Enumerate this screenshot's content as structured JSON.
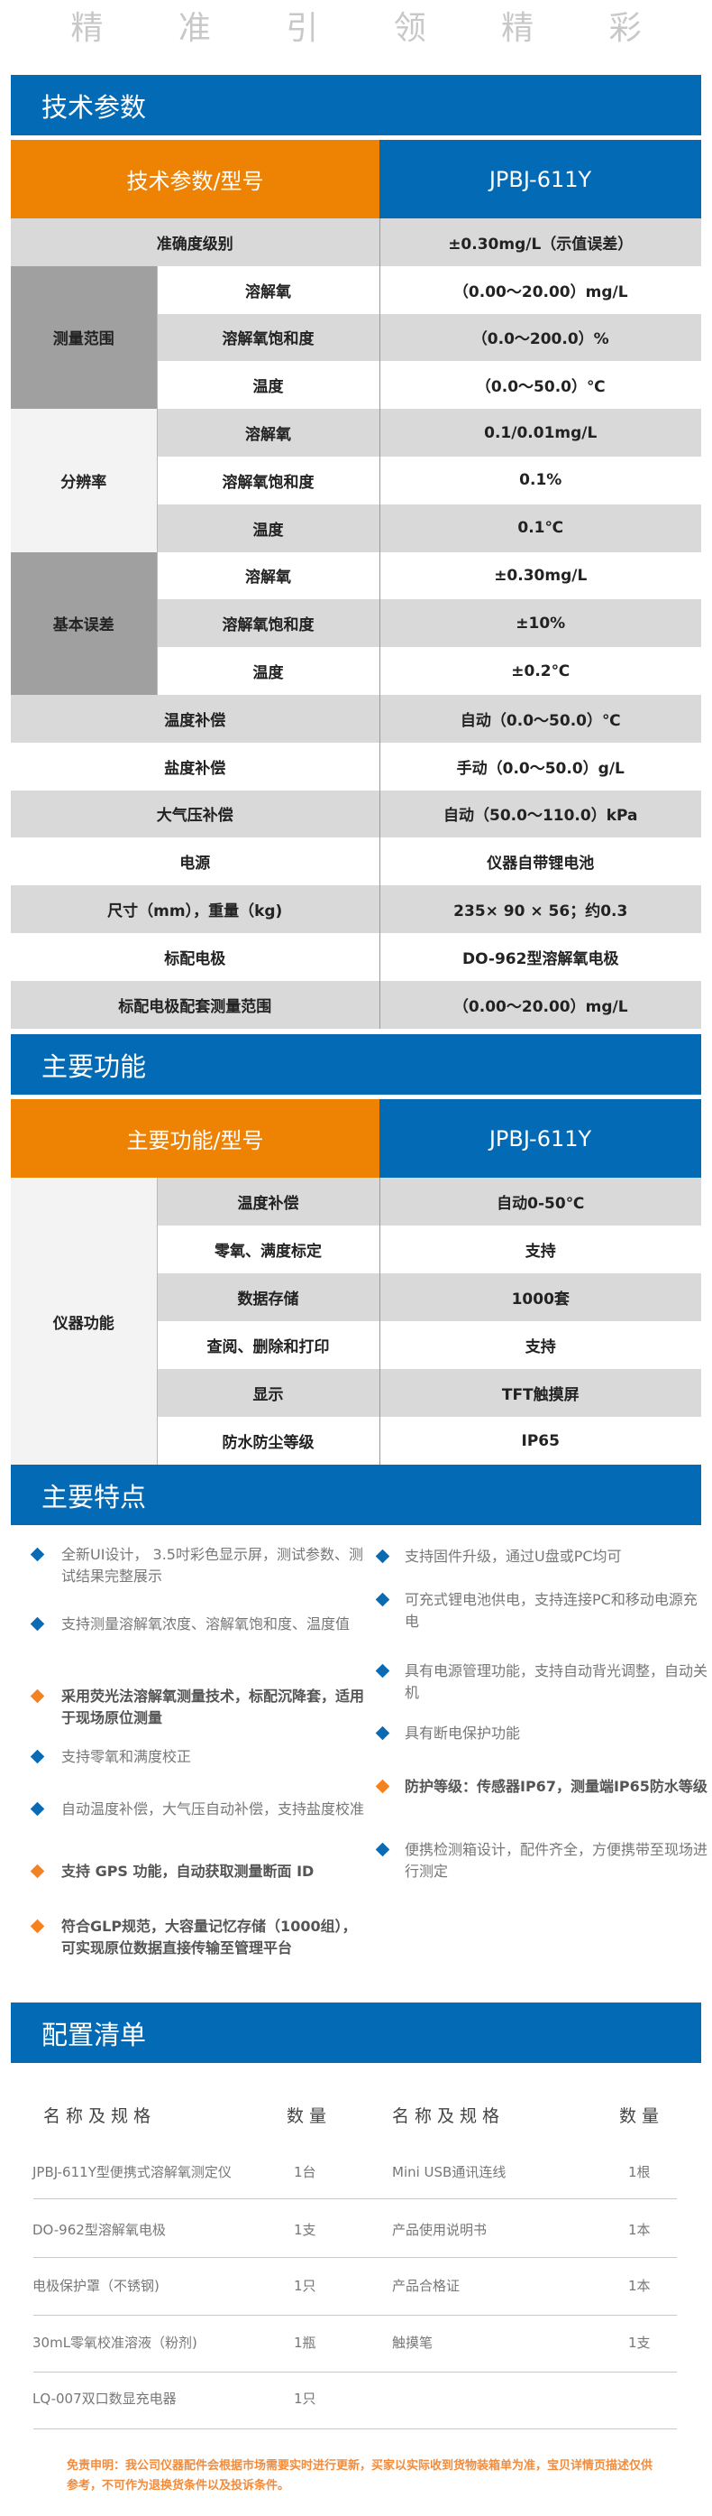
{
  "slogan": "精 准 引 领 精 彩",
  "colors": {
    "brand_blue": "#036bb5",
    "accent_orange": "#ee8203",
    "row_gray": "#d9d9d9",
    "disclaimer": "#f28c3c"
  },
  "tech": {
    "title": "技术参数",
    "header_left": "技术参数/型号",
    "header_right": "JPBJ-611Y",
    "rows": [
      {
        "label": "准确度级别",
        "value": "±0.30mg/L（示值误差）"
      },
      {
        "group": "测量范围",
        "items": [
          {
            "label": "溶解氧",
            "value": "（0.00～20.00）mg/L"
          },
          {
            "label": "溶解氧饱和度",
            "value": "（0.0～200.0）%"
          },
          {
            "label": "温度",
            "value": "（0.0～50.0）℃"
          }
        ]
      },
      {
        "group": "分辨率",
        "items": [
          {
            "label": "溶解氧",
            "value": "0.1/0.01mg/L"
          },
          {
            "label": "溶解氧饱和度",
            "value": "0.1%"
          },
          {
            "label": "温度",
            "value": "0.1℃"
          }
        ]
      },
      {
        "group": "基本误差",
        "items": [
          {
            "label": "溶解氧",
            "value": "±0.30mg/L"
          },
          {
            "label": "溶解氧饱和度",
            "value": "±10%"
          },
          {
            "label": "温度",
            "value": "±0.2℃"
          }
        ]
      },
      {
        "label": "温度补偿",
        "value": "自动（0.0～50.0）℃"
      },
      {
        "label": "盐度补偿",
        "value": "手动（0.0～50.0）g/L"
      },
      {
        "label": "大气压补偿",
        "value": "自动（50.0～110.0）kPa"
      },
      {
        "label": "电源",
        "value": "仪器自带锂电池"
      },
      {
        "label": "尺寸（mm），重量（kg)",
        "value": "235× 90 × 56；约0.3"
      },
      {
        "label": "标配电极",
        "value": "DO-962型溶解氧电极"
      },
      {
        "label": "标配电极配套测量范围",
        "value": "（0.00～20.00）mg/L"
      }
    ]
  },
  "functions": {
    "title": "主要功能",
    "header_left": "主要功能/型号",
    "header_right": "JPBJ-611Y",
    "rows": [
      {
        "group": "仪器功能",
        "items": [
          {
            "label": "温度补偿",
            "value": "自动0-50℃"
          },
          {
            "label": "零氧、满度标定",
            "value": "支持"
          },
          {
            "label": "数据存储",
            "value": "1000套"
          },
          {
            "label": "查阅、删除和打印",
            "value": "支持"
          },
          {
            "label": "显示",
            "value": "TFT触摸屏"
          },
          {
            "label": "防水防尘等级",
            "value": "IP65"
          }
        ]
      }
    ]
  },
  "features": {
    "title": "主要特点",
    "left": [
      {
        "text": "全新UI设计， 3.5吋彩色显示屏，测试参数、测试结果完整展示",
        "bullet": "blue"
      },
      {
        "text": "支持测量溶解氧浓度、溶解氧饱和度、温度值",
        "bullet": "blue"
      },
      {
        "text": "采用荧光法溶解氧测量技术，标配沉降套，适用于现场原位测量",
        "bullet": "orange"
      },
      {
        "text": "支持零氧和满度校正",
        "bullet": "blue"
      },
      {
        "text": "自动温度补偿，大气压自动补偿，支持盐度校准",
        "bullet": "blue"
      },
      {
        "text": "支持 GPS 功能，自动获取测量断面 ID",
        "bullet": "orange"
      },
      {
        "text": "符合GLP规范，大容量记忆存储（1000组），可实现原位数据直接传输至管理平台",
        "bullet": "orange"
      }
    ],
    "right": [
      {
        "text": "支持固件升级，通过U盘或PC均可",
        "bullet": "blue"
      },
      {
        "text": "可充式锂电池供电，支持连接PC和移动电源充电",
        "bullet": "blue"
      },
      {
        "text": "具有电源管理功能，支持自动背光调整，自动关机",
        "bullet": "blue"
      },
      {
        "text": "具有断电保护功能",
        "bullet": "blue"
      },
      {
        "text": "防护等级：传感器IP67，测量端IP65防水等级",
        "bullet": "orange"
      },
      {
        "text": "便携检测箱设计，配件齐全，方便携带至现场进行测定",
        "bullet": "blue"
      }
    ]
  },
  "config": {
    "title": "配置清单",
    "headers": [
      "名称及规格",
      "数量",
      "名称及规格",
      "数量"
    ],
    "rows": [
      [
        "JPBJ-611Y型便携式溶解氧测定仪",
        "1台",
        "Mini USB通讯连线",
        "1根"
      ],
      [
        "DO-962型溶解氧电极",
        "1支",
        "产品使用说明书",
        "1本"
      ],
      [
        "电极保护罩（不锈钢)",
        "1只",
        "产品合格证",
        "1本"
      ],
      [
        "30mL零氧校准溶液（粉剂)",
        "1瓶",
        "触摸笔",
        "1支"
      ],
      [
        "LQ-007双口数显充电器",
        "1只",
        "",
        ""
      ]
    ]
  },
  "disclaimer": "免责申明：我公司仪器配件会根据市场需要实时进行更新，买家以实际收到货物装箱单为准，宝贝详情页描述仅供参考，不可作为退换货条件以及投诉条件。"
}
